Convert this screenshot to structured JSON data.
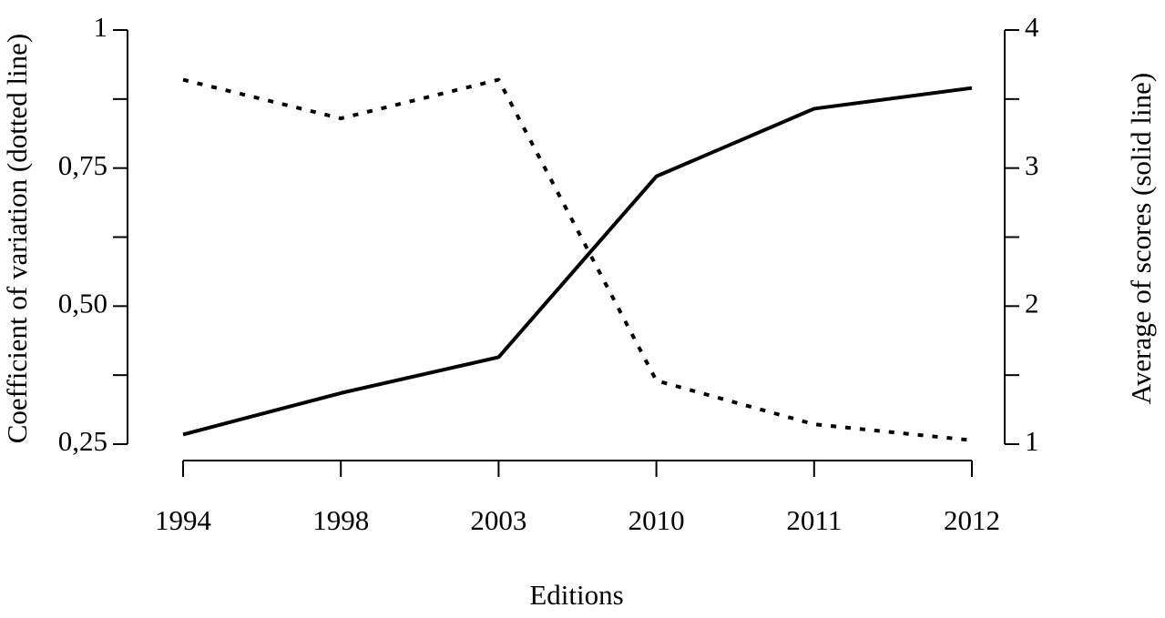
{
  "chart_data": {
    "type": "line",
    "x_label": "Editions",
    "y_label": "Coefficient of variation (dotted line)",
    "y2_label": "Average of scores (solid line)",
    "categories": [
      "1994",
      "1998",
      "2003",
      "2010",
      "2011",
      "2012"
    ],
    "ylim": [
      0.25,
      1
    ],
    "yticks": [
      {
        "value": 0.25,
        "label": "0,25"
      },
      {
        "value": 0.5,
        "label": "0,50"
      },
      {
        "value": 0.75,
        "label": "0,75"
      },
      1
    ],
    "yticks_minor": [
      0.375,
      0.625,
      0.875
    ],
    "y2lim": [
      1,
      4
    ],
    "y2ticks": [
      1,
      2,
      3,
      4
    ],
    "y2ticks_minor": [
      1.5,
      2.5,
      3.5
    ],
    "series": [
      {
        "color": "#000000",
        "style": "dotted",
        "values": [
          0.91,
          0.84,
          0.91,
          0.365,
          0.286,
          0.257
        ]
      },
      {
        "color": "#000000",
        "style": "solid",
        "axis": "y2",
        "values": [
          1.07,
          1.37,
          1.63,
          2.94,
          3.43,
          3.58
        ]
      }
    ]
  }
}
